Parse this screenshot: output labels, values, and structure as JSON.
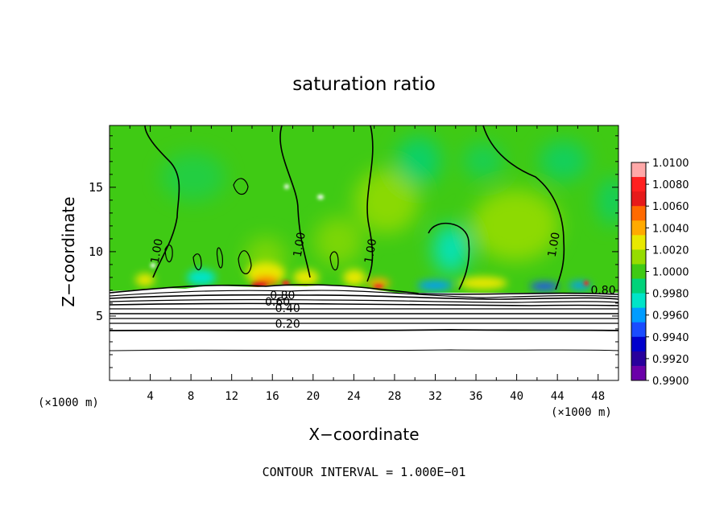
{
  "chart_data": {
    "type": "heatmap",
    "title": "saturation ratio",
    "xlabel": "X−coordinate",
    "ylabel": "Z−coordinate",
    "x_unit": "(×1000 m)",
    "x_unit_right": "(×1000 m)",
    "xlim": [
      0,
      50
    ],
    "ylim": [
      0,
      19.8
    ],
    "x_ticks": [
      4,
      8,
      12,
      16,
      20,
      24,
      28,
      32,
      36,
      40,
      44,
      48
    ],
    "x_tick_labels": [
      "4",
      "8",
      "12",
      "16",
      "20",
      "24",
      "28",
      "32",
      "36",
      "40",
      "44",
      "48"
    ],
    "y_ticks": [
      5,
      10,
      15
    ],
    "y_tick_labels": [
      "5",
      "10",
      "15"
    ],
    "colorbar": {
      "range": [
        0.99,
        1.01
      ],
      "labels": [
        "1.0100",
        "1.0080",
        "1.0060",
        "1.0040",
        "1.0020",
        "1.0000",
        "0.9980",
        "0.9960",
        "0.9940",
        "0.9920",
        "0.9900"
      ],
      "colors": [
        "#ffa8a8",
        "#ff2020",
        "#e61a1a",
        "#ff6a00",
        "#ffaa00",
        "#e8e800",
        "#96dc00",
        "#3fca14",
        "#00d27a",
        "#00e4c8",
        "#009cff",
        "#1a4cff",
        "#0000cc",
        "#28009c",
        "#6a00a8"
      ]
    },
    "contour_labels": [
      {
        "text": "1.00",
        "x": 5.0,
        "z": 10.0
      },
      {
        "text": "1.00",
        "x": 19.0,
        "z": 10.5
      },
      {
        "text": "1.00",
        "x": 26.0,
        "z": 10.0
      },
      {
        "text": "1.00",
        "x": 44.0,
        "z": 10.5
      },
      {
        "text": "0.80",
        "x": 48.5,
        "z": 6.7
      },
      {
        "text": "0.80",
        "x": 17.0,
        "z": 6.3
      },
      {
        "text": "0.60",
        "x": 16.5,
        "z": 5.8
      },
      {
        "text": "0.40",
        "x": 17.5,
        "z": 5.3
      },
      {
        "text": "0.20",
        "x": 17.5,
        "z": 4.1
      }
    ],
    "footer": "CONTOUR INTERVAL = 1.000E−01"
  }
}
